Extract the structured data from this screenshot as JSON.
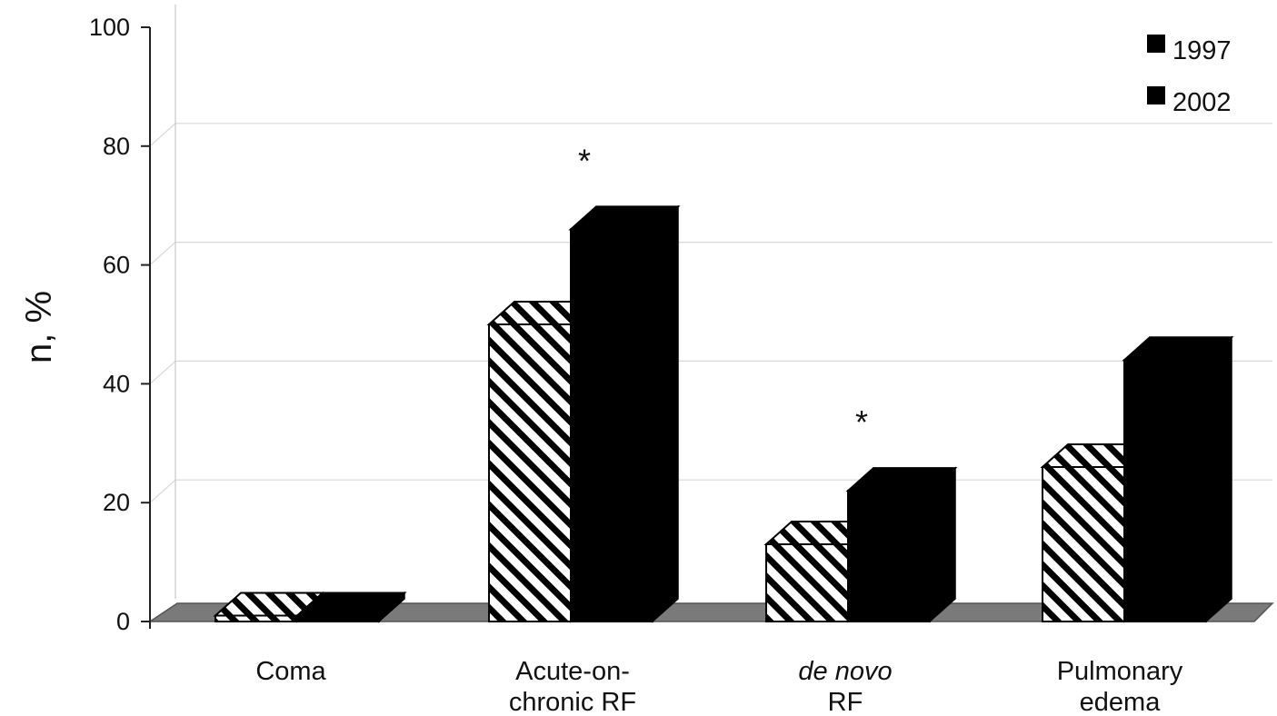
{
  "chart_data": {
    "type": "bar",
    "categories": [
      {
        "line1": "Coma",
        "line2": "",
        "italic": false
      },
      {
        "line1": "Acute-on-",
        "line2": "chronic RF",
        "italic": false
      },
      {
        "line1": "de novo",
        "line2": "RF",
        "italic": true
      },
      {
        "line1": "Pulmonary",
        "line2": "edema",
        "italic": false
      }
    ],
    "series": [
      {
        "name": "1997",
        "pattern": "hatched",
        "values": [
          1,
          50,
          13,
          26
        ]
      },
      {
        "name": "2002",
        "pattern": "solid",
        "values": [
          1,
          66,
          22,
          44
        ]
      }
    ],
    "ylabel": "n, %",
    "ylim": [
      0,
      100
    ],
    "yticks": [
      "0",
      "20",
      "40",
      "60",
      "80",
      "100"
    ],
    "gridlines": [
      20,
      40,
      60,
      80
    ],
    "annotations": [
      {
        "category_index": 1,
        "text": "*"
      },
      {
        "category_index": 2,
        "text": "*"
      }
    ],
    "legend_position": "top-right",
    "colors": {
      "solid": "#000000",
      "hatch": "#000000",
      "floor": "#7a7a7a",
      "grid": "#d8d8d8"
    }
  }
}
